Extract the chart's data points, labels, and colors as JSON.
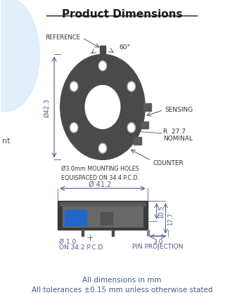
{
  "title": "Product Dimensions",
  "bg_color": "#ffffff",
  "text_color": "#4a5a8a",
  "dark_color": "#3a3a3a",
  "blue_color": "#2255cc",
  "footer_line1": "All dimensions in mm",
  "footer_line2": "All tolerances ±0.15 mm unless otherwise stated",
  "top_view": {
    "label_diameter": "Ø42.3",
    "label_pcd": "Ø3.0mm MOUNTING HOLES\nEQUISPACED ON 34.4 P.C.D.",
    "label_reference": "REFERENCE",
    "label_sensing": "SENSING",
    "label_r277": "R  27.7",
    "label_nominal": "NOMINAL",
    "label_counter": "COUNTER",
    "label_60": "60°"
  },
  "side_view": {
    "label_diam": "Ø 41.2",
    "label_pin_diam": "Ø 1.0",
    "label_pcd": "ON 34.2 P.C.D.",
    "label_pin_proj": "3.0",
    "label_pin_proj2": "PIN PROJECTION",
    "label_h1": "10.5",
    "label_h2": "17.7"
  }
}
